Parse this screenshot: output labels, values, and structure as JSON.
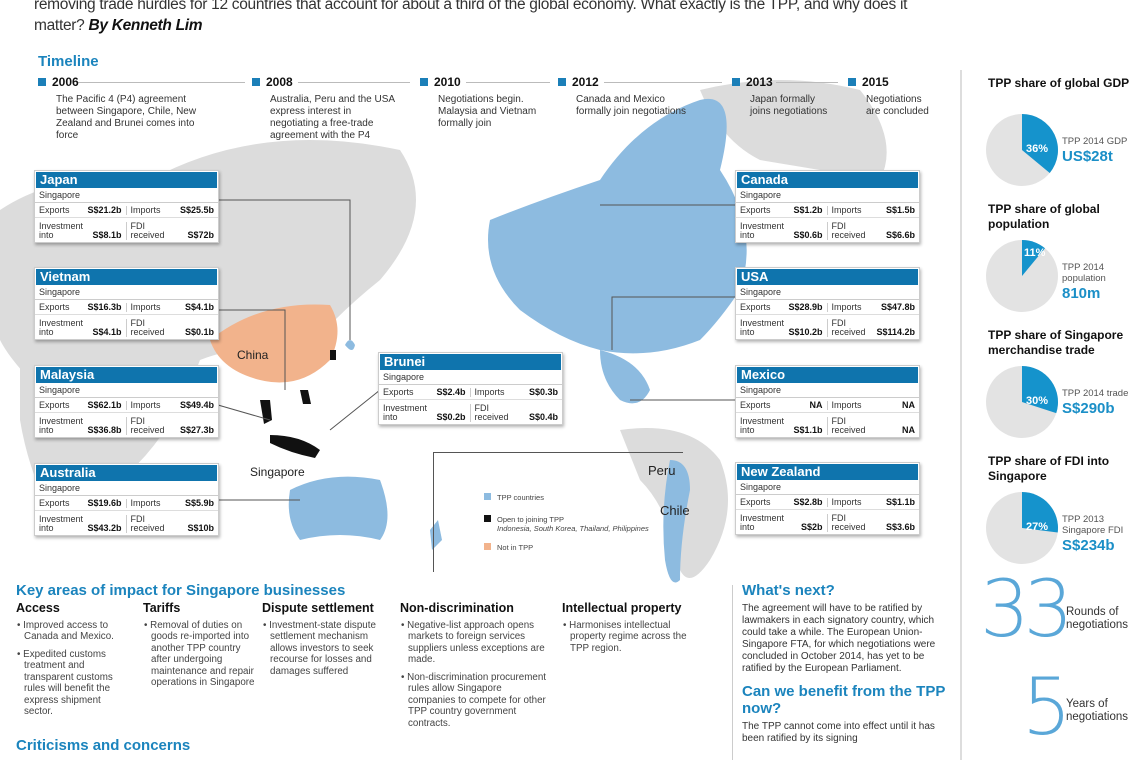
{
  "intro": {
    "text": "removing trade hurdles for 12 countries that account for about a third of the global economy. What exactly is the TPP, and why does it matter?",
    "byline": "By Kenneth Lim"
  },
  "timeline": {
    "title": "Timeline",
    "items": [
      {
        "year": "2006",
        "text": "The Pacific 4 (P4) agreement between Singapore, Chile, New Zealand and Brunei comes into force"
      },
      {
        "year": "2008",
        "text": "Australia, Peru and the USA express interest in negotiating a free-trade agreement with the P4"
      },
      {
        "year": "2010",
        "text": "Negotiations begin. Malaysia and Vietnam formally join"
      },
      {
        "year": "2012",
        "text": "Canada and Mexico formally join negotiations"
      },
      {
        "year": "2013",
        "text": "Japan formally joins negotiations"
      },
      {
        "year": "2015",
        "text": "Negotiations are concluded"
      }
    ]
  },
  "labels": {
    "singapore": "Singapore",
    "exports": "Exports",
    "imports": "Imports",
    "investment": "Investment into",
    "fdi": "FDI received"
  },
  "countries": [
    {
      "name": "Japan",
      "exports": "S$21.2b",
      "imports": "S$25.5b",
      "investment": "S$8.1b",
      "fdi": "S$72b"
    },
    {
      "name": "Vietnam",
      "exports": "S$16.3b",
      "imports": "S$4.1b",
      "investment": "S$4.1b",
      "fdi": "S$0.1b"
    },
    {
      "name": "Malaysia",
      "exports": "S$62.1b",
      "imports": "S$49.4b",
      "investment": "S$36.8b",
      "fdi": "S$27.3b"
    },
    {
      "name": "Australia",
      "exports": "S$19.6b",
      "imports": "S$5.9b",
      "investment": "S$43.2b",
      "fdi": "S$10b"
    },
    {
      "name": "Brunei",
      "exports": "S$2.4b",
      "imports": "S$0.3b",
      "investment": "S$0.2b",
      "fdi": "S$0.4b"
    },
    {
      "name": "Canada",
      "exports": "S$1.2b",
      "imports": "S$1.5b",
      "investment": "S$0.6b",
      "fdi": "S$6.6b"
    },
    {
      "name": "USA",
      "exports": "S$28.9b",
      "imports": "S$47.8b",
      "investment": "S$10.2b",
      "fdi": "S$114.2b"
    },
    {
      "name": "Mexico",
      "exports": "NA",
      "imports": "NA",
      "investment": "S$1.1b",
      "fdi": "NA"
    },
    {
      "name": "New Zealand",
      "exports": "S$2.8b",
      "imports": "S$1.1b",
      "investment": "S$2b",
      "fdi": "S$3.6b"
    }
  ],
  "map": {
    "labels": {
      "china": "China",
      "singapore": "Singapore",
      "peru": "Peru",
      "chile": "Chile"
    },
    "legend": [
      {
        "label": "TPP countries",
        "color": "#8dbbe0"
      },
      {
        "label": "Open to joining TPP",
        "sub": "Indonesia, South Korea, Thailand, Philippines",
        "color": "#111111"
      },
      {
        "label": "Not in TPP",
        "color": "#f2b38c"
      }
    ]
  },
  "shares": [
    {
      "title": "TPP share of global GDP",
      "percent": 36,
      "pct_label": "36%",
      "caption": "TPP 2014 GDP",
      "value": "US$28t"
    },
    {
      "title": "TPP share of global population",
      "percent": 11,
      "pct_label": "11%",
      "caption": "TPP 2014 population",
      "value": "810m"
    },
    {
      "title": "TPP share of Singapore merchandise trade",
      "percent": 30,
      "pct_label": "30%",
      "caption": "TPP 2014 trade",
      "value": "S$290b"
    },
    {
      "title": "TPP share of FDI into Singapore",
      "percent": 27,
      "pct_label": "27%",
      "caption": "TPP 2013 Singapore FDI",
      "value": "S$234b"
    }
  ],
  "colors": {
    "accent": "#1b84bd",
    "pie_fill": "#1593cc",
    "pie_bg": "#e3e3e3"
  },
  "stats": [
    {
      "number": "33",
      "label": "Rounds of negotiations"
    },
    {
      "number": "5",
      "label": "Years of negotiations"
    }
  ],
  "impact": {
    "title": "Key areas of impact for Singapore businesses",
    "columns": [
      {
        "heading": "Access",
        "bullets": [
          "Improved access to Canada and Mexico.",
          "Expedited customs treatment and transparent customs rules will benefit the express shipment sector."
        ]
      },
      {
        "heading": "Tariffs",
        "bullets": [
          "Removal of duties on goods re-imported into another TPP country after undergoing maintenance and repair operations in Singapore"
        ]
      },
      {
        "heading": "Dispute settlement",
        "bullets": [
          "Investment-state dispute settlement mechanism allows investors to seek recourse for losses and damages suffered"
        ]
      },
      {
        "heading": "Non-discrimination",
        "bullets": [
          "Negative-list approach opens markets to foreign services suppliers unless exceptions are made.",
          "Non-discrimination procurement rules allow Singapore companies to compete for other TPP country government contracts."
        ]
      },
      {
        "heading": "Intellectual property",
        "bullets": [
          "Harmonises intellectual property regime across the TPP region."
        ]
      }
    ]
  },
  "criticisms_title": "Criticisms and concerns",
  "whats_next": {
    "title": "What's next?",
    "text": "The agreement will have to be ratified by lawmakers in each signatory country, which could take a while. The European Union-Singapore FTA, for which negotiations were concluded in October 2014, has yet to be ratified by the European Parliament."
  },
  "benefit": {
    "title": "Can we benefit from the TPP now?",
    "text": "The TPP cannot come into effect until it has been ratified by its signing"
  }
}
